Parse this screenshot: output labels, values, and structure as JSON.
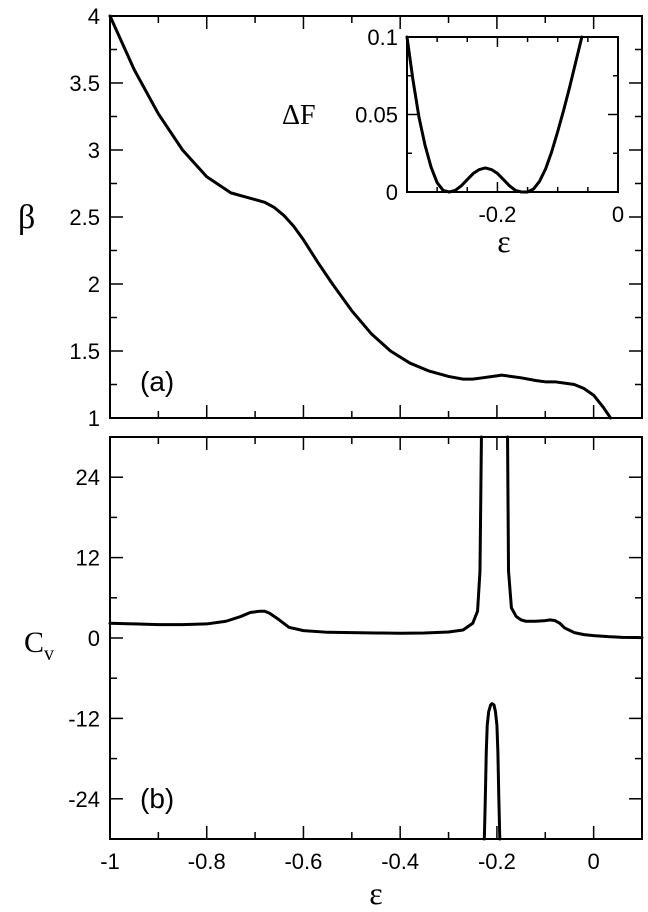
{
  "chart_data": [
    {
      "type": "line",
      "panel_label": "(a)",
      "xlabel": "",
      "ylabel": "β",
      "xlim": [
        -1.0,
        0.1
      ],
      "ylim": [
        1,
        4
      ],
      "yticks": [
        1,
        1.5,
        2,
        2.5,
        3,
        3.5,
        4
      ],
      "ytick_labels": [
        "1",
        "1.5",
        "2",
        "2.5",
        "3",
        "3.5",
        "4"
      ],
      "grid": false,
      "series": [
        {
          "x": [
            -1.0,
            -0.95,
            -0.9,
            -0.85,
            -0.8,
            -0.75,
            -0.72,
            -0.7,
            -0.68,
            -0.66,
            -0.64,
            -0.62,
            -0.6,
            -0.57,
            -0.54,
            -0.5,
            -0.46,
            -0.42,
            -0.38,
            -0.34,
            -0.3,
            -0.27,
            -0.25,
            -0.23,
            -0.21,
            -0.19,
            -0.17,
            -0.15,
            -0.12,
            -0.1,
            -0.08,
            -0.06,
            -0.04,
            -0.02,
            0.0,
            0.02,
            0.035
          ],
          "y": [
            4.0,
            3.6,
            3.27,
            3.0,
            2.8,
            2.68,
            2.65,
            2.63,
            2.61,
            2.57,
            2.51,
            2.43,
            2.33,
            2.16,
            2.0,
            1.8,
            1.63,
            1.5,
            1.41,
            1.35,
            1.31,
            1.29,
            1.29,
            1.3,
            1.31,
            1.32,
            1.31,
            1.3,
            1.28,
            1.27,
            1.27,
            1.26,
            1.25,
            1.22,
            1.17,
            1.08,
            1.0
          ]
        }
      ]
    },
    {
      "type": "line",
      "inset_of": "(a)",
      "xlabel": "ε",
      "ylabel": "ΔF",
      "xlim": [
        -0.35,
        0
      ],
      "ylim": [
        0,
        0.1
      ],
      "xticks": [
        -0.2,
        0
      ],
      "xtick_labels": [
        "-0.2",
        "0"
      ],
      "yticks": [
        0,
        0.05,
        0.1
      ],
      "ytick_labels": [
        "0",
        "0.05",
        "0.1"
      ],
      "series": [
        {
          "x": [
            -0.35,
            -0.34,
            -0.33,
            -0.32,
            -0.31,
            -0.3,
            -0.29,
            -0.28,
            -0.27,
            -0.26,
            -0.25,
            -0.24,
            -0.23,
            -0.22,
            -0.21,
            -0.2,
            -0.19,
            -0.18,
            -0.17,
            -0.16,
            -0.15,
            -0.14,
            -0.13,
            -0.12,
            -0.11,
            -0.1,
            -0.09,
            -0.08,
            -0.07,
            -0.06
          ],
          "y": [
            0.1,
            0.072,
            0.048,
            0.03,
            0.016,
            0.006,
            0.001,
            0.0,
            0.001,
            0.004,
            0.008,
            0.012,
            0.0145,
            0.0155,
            0.0145,
            0.012,
            0.008,
            0.004,
            0.001,
            0.0,
            0.0,
            0.002,
            0.007,
            0.015,
            0.026,
            0.039,
            0.053,
            0.068,
            0.084,
            0.1
          ]
        }
      ]
    },
    {
      "type": "line",
      "panel_label": "(b)",
      "xlabel": "ε",
      "ylabel": "C_v",
      "xlim": [
        -1.0,
        0.1
      ],
      "ylim": [
        -30,
        30
      ],
      "xticks": [
        -1,
        -0.8,
        -0.6,
        -0.4,
        -0.2,
        0
      ],
      "xtick_labels": [
        "-1",
        "-0.8",
        "-0.6",
        "-0.4",
        "-0.2",
        "0"
      ],
      "yticks": [
        -24,
        -12,
        0,
        12,
        24
      ],
      "ytick_labels": [
        "-24",
        "-12",
        "0",
        "12",
        "24"
      ],
      "grid": false,
      "series": [
        {
          "x": [
            -1.0,
            -0.95,
            -0.9,
            -0.85,
            -0.8,
            -0.76,
            -0.73,
            -0.71,
            -0.69,
            -0.68,
            -0.67,
            -0.65,
            -0.63,
            -0.6,
            -0.55,
            -0.5,
            -0.45,
            -0.4,
            -0.35,
            -0.3,
            -0.27,
            -0.25,
            -0.24,
            -0.235,
            -0.232
          ],
          "y": [
            2.2,
            2.1,
            2.0,
            2.0,
            2.1,
            2.5,
            3.2,
            3.8,
            4.0,
            4.0,
            3.7,
            2.7,
            1.6,
            1.1,
            0.85,
            0.8,
            0.75,
            0.7,
            0.75,
            0.9,
            1.2,
            2.2,
            4.0,
            10.0,
            30.0
          ]
        },
        {
          "x": [
            -0.178,
            -0.176,
            -0.17,
            -0.16,
            -0.15,
            -0.14,
            -0.12,
            -0.1,
            -0.09,
            -0.08,
            -0.07,
            -0.06,
            -0.04,
            -0.02,
            0.0,
            0.03,
            0.06,
            0.1
          ],
          "y": [
            30.0,
            10.0,
            4.5,
            3.2,
            2.7,
            2.5,
            2.5,
            2.6,
            2.7,
            2.6,
            2.2,
            1.5,
            0.8,
            0.5,
            0.35,
            0.2,
            0.1,
            0.05
          ]
        },
        {
          "x": [
            -0.226,
            -0.224,
            -0.222,
            -0.22,
            -0.217,
            -0.213,
            -0.21,
            -0.206,
            -0.203,
            -0.2,
            -0.198,
            -0.196,
            -0.194
          ],
          "y": [
            -30.0,
            -24.0,
            -17.0,
            -13.0,
            -11.0,
            -10.0,
            -9.8,
            -10.0,
            -11.0,
            -13.0,
            -17.0,
            -24.0,
            -30.0
          ]
        }
      ]
    }
  ]
}
